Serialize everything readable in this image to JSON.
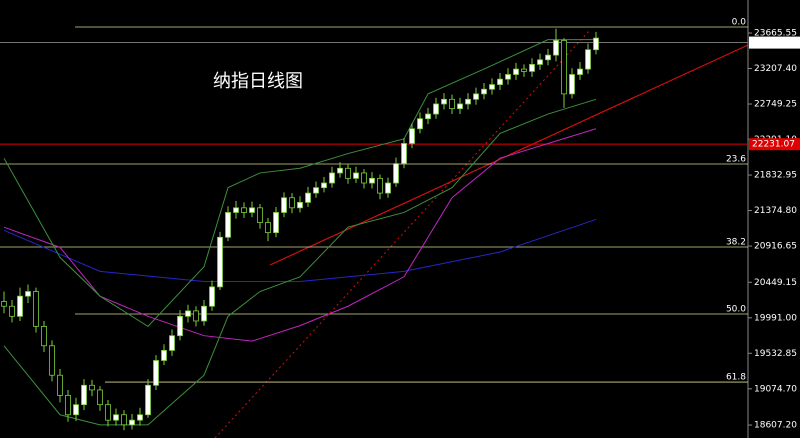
{
  "chart_data": {
    "type": "candlestick",
    "title": "纳指日线图",
    "open": [
      20200,
      20140,
      20010,
      20270,
      20330,
      19880,
      19630,
      19250,
      18990,
      18740,
      18870,
      19120,
      19060,
      18870,
      18670,
      18740,
      18610,
      18670,
      18740,
      19120,
      19440,
      19570,
      19760,
      20010,
      20080,
      19950,
      20140,
      20390,
      21030,
      21350,
      21410,
      21350,
      21410,
      21220,
      21090,
      21350,
      21540,
      21410,
      21480,
      21600,
      21670,
      21730,
      21860,
      21920,
      21790,
      21860,
      21730,
      21790,
      21600,
      21730,
      21980,
      22240,
      22430,
      22560,
      22620,
      22750,
      22810,
      22690,
      22750,
      22810,
      22880,
      22940,
      23000,
      23070,
      23130,
      23200,
      23170,
      23260,
      23320,
      23380,
      23570,
      22880,
      23130,
      23200,
      23450
    ],
    "high": [
      20330,
      20220,
      20380,
      20420,
      20380,
      19950,
      19700,
      19330,
      19060,
      18960,
      19200,
      19190,
      19110,
      18930,
      18820,
      18800,
      18750,
      18830,
      19200,
      19510,
      19650,
      19840,
      20090,
      20160,
      20140,
      20220,
      20470,
      21100,
      21430,
      21500,
      21480,
      21490,
      21460,
      21280,
      21420,
      21610,
      21600,
      21560,
      21680,
      21750,
      21810,
      21940,
      22000,
      21970,
      21940,
      21910,
      21870,
      21840,
      21800,
      22060,
      22310,
      22500,
      22640,
      22700,
      22830,
      22890,
      22870,
      22830,
      22890,
      22960,
      23020,
      23080,
      23150,
      23210,
      23280,
      23260,
      23340,
      23400,
      23460,
      23720,
      23600,
      23210,
      23290,
      23530,
      23680
    ],
    "low": [
      20050,
      19930,
      19950,
      20180,
      19800,
      19550,
      19170,
      18900,
      18650,
      18660,
      18800,
      18980,
      18790,
      18590,
      18600,
      18540,
      18550,
      18600,
      18700,
      19060,
      19380,
      19500,
      19700,
      19930,
      19880,
      19890,
      20080,
      20350,
      20980,
      21270,
      21280,
      21290,
      21140,
      20980,
      21030,
      21290,
      21340,
      21350,
      21420,
      21540,
      21610,
      21670,
      21800,
      21720,
      21730,
      21660,
      21660,
      21520,
      21540,
      21680,
      21920,
      22180,
      22370,
      22490,
      22560,
      22680,
      22620,
      22620,
      22680,
      22740,
      22810,
      22870,
      22930,
      23000,
      23060,
      23100,
      23100,
      23190,
      23250,
      23300,
      22700,
      22820,
      23060,
      23140,
      23390
    ],
    "close": [
      20140,
      20010,
      20270,
      20330,
      19880,
      19630,
      19250,
      18990,
      18740,
      18870,
      19120,
      19060,
      18870,
      18670,
      18740,
      18610,
      18670,
      18740,
      19120,
      19440,
      19570,
      19760,
      20010,
      20080,
      19950,
      20140,
      20390,
      21030,
      21350,
      21410,
      21350,
      21410,
      21220,
      21090,
      21350,
      21540,
      21410,
      21480,
      21600,
      21670,
      21730,
      21860,
      21920,
      21790,
      21860,
      21730,
      21790,
      21600,
      21730,
      21980,
      22240,
      22430,
      22560,
      22620,
      22750,
      22810,
      22690,
      22750,
      22810,
      22880,
      22940,
      23000,
      23070,
      23130,
      23200,
      23170,
      23260,
      23320,
      23380,
      23570,
      22880,
      23130,
      23200,
      23450,
      23600
    ],
    "up_color": "#ffffff",
    "down_color": "#000000",
    "wick_color": "#7ccf3a",
    "ylim": [
      18440,
      24091.4
    ],
    "yticks": [
      23665.55,
      {
        "value": 23207.4,
        "label": "23207.40"
      },
      22749.25,
      {
        "value": 22291.1,
        "label": "22291.10"
      },
      21832.95,
      {
        "value": 21374.8,
        "label": "21374.80"
      },
      20916.65,
      20449.15,
      {
        "value": 19991,
        "label": "19991.00"
      },
      19532.85,
      {
        "value": 19074.7,
        "label": "19074.70"
      },
      {
        "value": 18607.2,
        "label": "18607.20"
      }
    ],
    "indicators": [
      {
        "color": "#2626c8",
        "x": [
          0,
          12,
          25,
          37,
          50,
          62,
          74
        ],
        "values": [
          21120,
          20590,
          20460,
          20460,
          20590,
          20840,
          21260
        ]
      },
      {
        "color": "#c026c0",
        "x": [
          0,
          7,
          12,
          18,
          25,
          31,
          37,
          43,
          50,
          56,
          62,
          68,
          74
        ],
        "values": [
          21160,
          20900,
          20270,
          20010,
          19760,
          19690,
          19890,
          20140,
          20520,
          21540,
          22050,
          22240,
          22430
        ]
      },
      {
        "color": "#3d8f3d",
        "x": [
          0,
          7,
          12,
          18,
          25,
          28,
          32,
          37,
          43,
          50,
          53,
          60,
          68,
          74
        ],
        "values": [
          22050,
          20770,
          20270,
          19880,
          20650,
          21670,
          21860,
          21920,
          22110,
          22300,
          22880,
          23200,
          23580,
          23580
        ]
      },
      {
        "color": "#3d8f3d",
        "x": [
          0,
          7,
          12,
          18,
          25,
          28,
          32,
          37,
          43,
          50,
          56,
          62,
          68,
          74
        ],
        "values": [
          19630,
          18740,
          18610,
          18610,
          19250,
          20010,
          20330,
          20520,
          21160,
          21350,
          21670,
          22370,
          22620,
          22810
        ]
      }
    ],
    "fib_levels": [
      {
        "value": 23743,
        "label": "0.0"
      },
      {
        "value": 21975,
        "label": "23.6"
      },
      {
        "value": 20904,
        "label": "38.2"
      },
      {
        "value": 20040,
        "label": "50.0"
      },
      {
        "value": 19162,
        "label": "61.8"
      }
    ],
    "fib_color": "#d8d890",
    "current_price": 23541.83,
    "support_level": 22231.07,
    "support_color": "#e00000"
  }
}
